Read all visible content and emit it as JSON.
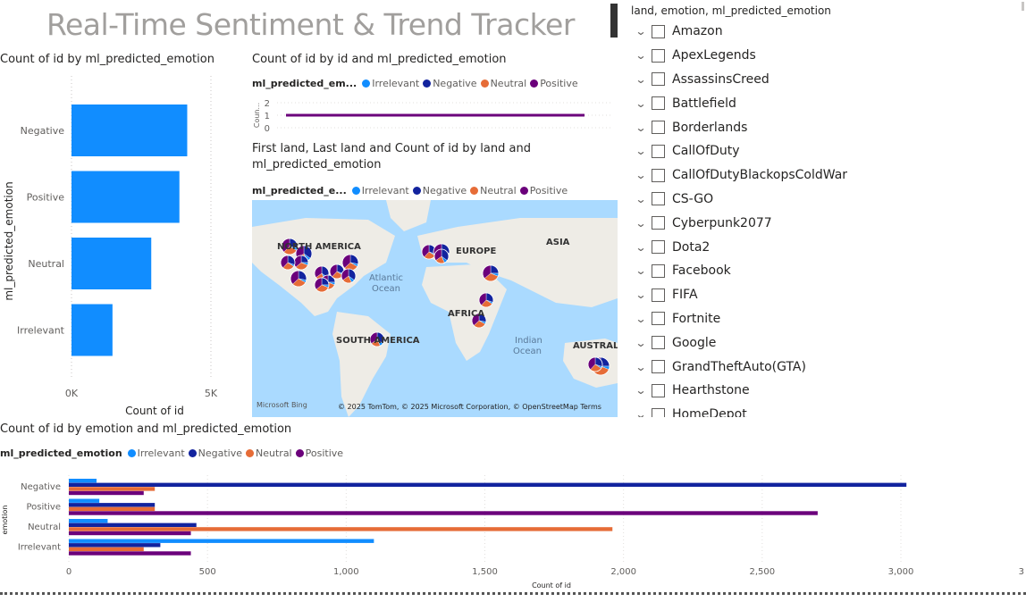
{
  "page_title": "Real-Time Sentiment & Trend Tracker",
  "colors": {
    "irrelevant": "#118dff",
    "negative": "#12239e",
    "neutral": "#e66c37",
    "positive": "#6b007b",
    "bar_single": "#118dff"
  },
  "chart_data": [
    {
      "type": "bar",
      "orientation": "horizontal",
      "title": "Count of id by ml_predicted_emotion",
      "xlabel": "Count of id",
      "ylabel": "ml_predicted_emotion",
      "categories": [
        "Negative",
        "Positive",
        "Neutral",
        "Irrelevant"
      ],
      "values": [
        4150,
        3870,
        2860,
        1470
      ],
      "xlim": [
        0,
        5000
      ],
      "xticks": [
        "0K",
        "5K"
      ]
    },
    {
      "type": "line",
      "title": "Count of id by id and ml_predicted_emotion",
      "legend_title": "ml_predicted_em...",
      "series_names": [
        "Irrelevant",
        "Negative",
        "Neutral",
        "Positive"
      ],
      "ylabel": "Coun...",
      "yticks": [
        "2",
        "1",
        "0"
      ],
      "ylim": [
        0,
        2
      ],
      "line_value": 1
    },
    {
      "type": "bar",
      "orientation": "horizontal",
      "title": "Count of id by emotion and ml_predicted_emotion",
      "legend_title": "ml_predicted_emotion",
      "xlabel": "Count of id",
      "ylabel": "emotion",
      "categories": [
        "Negative",
        "Positive",
        "Neutral",
        "Irrelevant"
      ],
      "xlim": [
        0,
        3000
      ],
      "xticks": [
        "0",
        "500",
        "1,000",
        "1,500",
        "2,000",
        "2,500",
        "3,000",
        "3"
      ],
      "series": [
        {
          "name": "Irrelevant",
          "values": [
            100,
            110,
            140,
            1100
          ]
        },
        {
          "name": "Negative",
          "values": [
            3020,
            310,
            460,
            330
          ]
        },
        {
          "name": "Neutral",
          "values": [
            310,
            310,
            1960,
            270
          ]
        },
        {
          "name": "Positive",
          "values": [
            270,
            2700,
            440,
            440
          ]
        }
      ]
    }
  ],
  "map_visual": {
    "title_line1": "First land, Last land and Count of id by land and",
    "title_line2": "ml_predicted_emotion",
    "legend_title": "ml_predicted_e...",
    "labels": {
      "north_america": "NORTH AMERICA",
      "europe": "EUROPE",
      "asia": "ASIA",
      "atlantic1": "Atlantic",
      "atlantic2": "Ocean",
      "africa": "AFRICA",
      "south_america": "SOUTH AMERICA",
      "indian1": "Indian",
      "indian2": "Ocean",
      "australia": "AUSTRALI"
    },
    "attribution": "© 2025 TomTom, © 2025 Microsoft Corporation, © OpenStreetMap  Terms",
    "brand": "Microsoft Bing",
    "pies": [
      {
        "n": 0.28,
        "i": 0.05,
        "ne": 0.3,
        "p": 0.37
      },
      {
        "n": 0.35,
        "i": 0.08,
        "ne": 0.22,
        "p": 0.35
      },
      {
        "n": 0.25,
        "i": 0.06,
        "ne": 0.33,
        "p": 0.36
      },
      {
        "n": 0.3,
        "i": 0.04,
        "ne": 0.28,
        "p": 0.38
      }
    ]
  },
  "slicer": {
    "header": "land, emotion, ml_predicted_emotion",
    "items": [
      "Amazon",
      "ApexLegends",
      "AssassinsCreed",
      "Battlefield",
      "Borderlands",
      "CallOfDuty",
      "CallOfDutyBlackopsColdWar",
      "CS-GO",
      "Cyberpunk2077",
      "Dota2",
      "Facebook",
      "FIFA",
      "Fortnite",
      "Google",
      "GrandTheftAuto(GTA)",
      "Hearthstone",
      "HomeDepot"
    ]
  }
}
